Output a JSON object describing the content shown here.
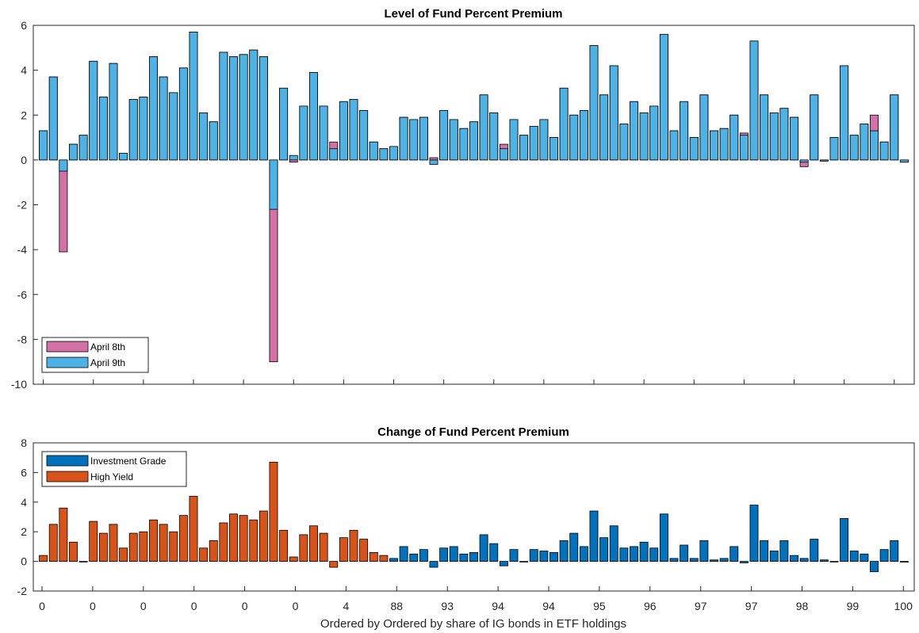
{
  "colors": {
    "april8": "#D472A8",
    "april9": "#4DB3E6",
    "investment_grade": "#0072BD",
    "high_yield": "#D95319"
  },
  "chart_data": [
    {
      "type": "bar",
      "title": "Level of Fund Percent Premium",
      "ylim": [
        -10,
        6
      ],
      "yticks": [
        6,
        4,
        2,
        0,
        -2,
        -4,
        -6,
        -8,
        -10
      ],
      "grid": false,
      "legend": "bottom-left",
      "series": [
        {
          "name": "April 8th",
          "color_key": "april8",
          "values": [
            1.3,
            3.7,
            -4.1,
            0.7,
            1.1,
            4.4,
            2.8,
            4.3,
            0.3,
            2.7,
            2.8,
            4.6,
            3.7,
            3.0,
            4.1,
            5.7,
            2.1,
            1.7,
            4.8,
            4.6,
            4.7,
            4.9,
            4.6,
            -9.0,
            3.2,
            -0.1,
            2.4,
            3.9,
            2.4,
            0.8,
            2.6,
            2.7,
            2.2,
            0.8,
            0.5,
            0.6,
            1.9,
            1.8,
            1.9,
            0.1,
            2.2,
            1.8,
            1.4,
            1.7,
            2.9,
            2.1,
            0.7,
            1.8,
            1.1,
            1.5,
            1.8,
            1.0,
            3.2,
            2.0,
            2.2,
            5.1,
            2.9,
            4.2,
            1.6,
            2.6,
            2.1,
            2.4,
            5.6,
            1.3,
            2.6,
            1.0,
            2.9,
            1.3,
            1.4,
            2.0,
            1.2,
            5.3,
            2.9,
            2.1,
            2.3,
            1.9,
            -0.3,
            2.9,
            -0.05,
            1.0,
            4.2,
            1.1,
            1.6,
            2.0,
            0.8,
            2.9,
            -0.1
          ]
        },
        {
          "name": "April 9th",
          "color_key": "april9",
          "values": [
            1.3,
            3.7,
            -0.5,
            0.7,
            1.1,
            4.4,
            2.8,
            4.3,
            0.3,
            2.7,
            2.8,
            4.6,
            3.7,
            3.0,
            4.1,
            5.7,
            2.1,
            1.7,
            4.8,
            4.6,
            4.7,
            4.9,
            4.6,
            -2.2,
            3.2,
            0.2,
            2.4,
            3.9,
            2.4,
            0.5,
            2.6,
            2.7,
            2.2,
            0.8,
            0.5,
            0.6,
            1.9,
            1.8,
            1.9,
            -0.2,
            2.2,
            1.8,
            1.4,
            1.7,
            2.9,
            2.1,
            0.5,
            1.8,
            1.1,
            1.5,
            1.8,
            1.0,
            3.2,
            2.0,
            2.2,
            5.1,
            2.9,
            4.2,
            1.6,
            2.6,
            2.1,
            2.4,
            5.6,
            1.3,
            2.6,
            1.0,
            2.9,
            1.3,
            1.4,
            2.0,
            1.1,
            5.3,
            2.9,
            2.1,
            2.3,
            1.9,
            -0.1,
            2.9,
            -0.05,
            1.0,
            4.2,
            1.1,
            1.6,
            1.3,
            0.8,
            2.9,
            -0.1
          ]
        }
      ]
    },
    {
      "type": "bar",
      "title": "Change of Fund Percent Premium",
      "xlabel": "Ordered by Ordered by share of IG bonds in ETF holdings",
      "ylim": [
        -2,
        8
      ],
      "yticks": [
        8,
        6,
        4,
        2,
        0,
        -2
      ],
      "xticklabels": [
        "0",
        "0",
        "0",
        "0",
        "0",
        "0",
        "4",
        "88",
        "93",
        "94",
        "94",
        "95",
        "96",
        "97",
        "97",
        "98",
        "99",
        "100"
      ],
      "grid": false,
      "legend": "top-left",
      "series": [
        {
          "name": "High Yield",
          "color_key": "high_yield",
          "values": [
            0.4,
            2.5,
            3.6,
            1.3,
            0.0,
            2.7,
            1.9,
            2.5,
            0.9,
            1.9,
            2.0,
            2.8,
            2.5,
            2.0,
            3.1,
            4.4,
            0.9,
            1.4,
            2.6,
            3.2,
            3.1,
            2.8,
            3.4,
            6.7,
            2.1,
            0.3,
            1.8,
            2.4,
            1.9,
            -0.4,
            1.6,
            2.1,
            1.5,
            0.6,
            0.4
          ]
        },
        {
          "name": "Investment Grade",
          "color_key": "investment_grade",
          "values": [
            0.2,
            1.0,
            0.5,
            0.8,
            -0.4,
            0.9,
            1.0,
            0.5,
            0.6,
            1.8,
            1.2,
            -0.3,
            0.8,
            0.0,
            0.8,
            0.7,
            0.6,
            1.4,
            1.9,
            1.0,
            3.4,
            1.6,
            2.4,
            0.9,
            1.0,
            1.3,
            0.9,
            3.2,
            0.2,
            1.1,
            0.2,
            1.4,
            0.1,
            0.2,
            1.0,
            -0.1,
            3.8,
            1.4,
            0.7,
            1.4,
            0.4,
            0.2,
            1.5,
            0.1,
            0.0,
            2.9,
            0.7,
            0.5,
            -0.7,
            0.8,
            1.4,
            -0.05
          ]
        }
      ]
    }
  ]
}
